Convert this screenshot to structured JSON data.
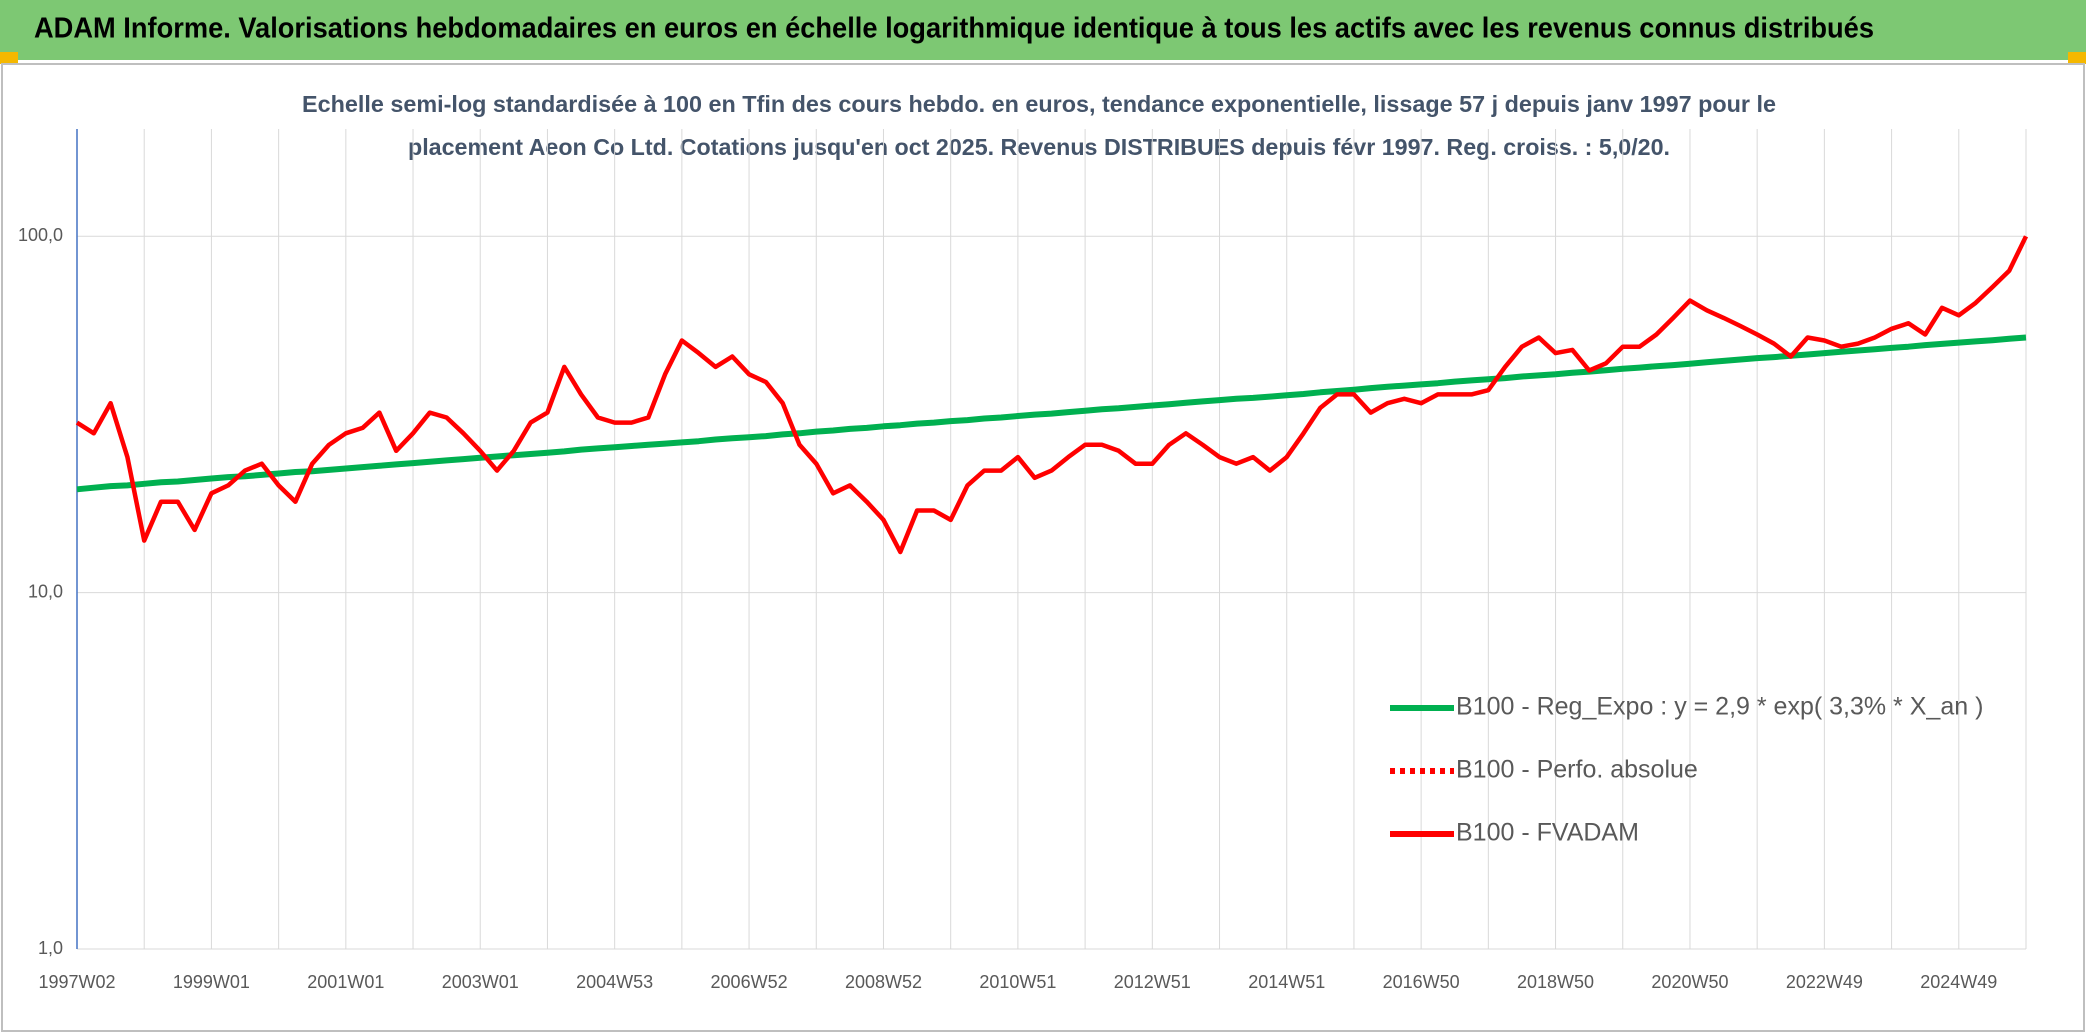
{
  "chart_data": {
    "type": "line",
    "title": "ADAM Informe. Valorisations hebdomadaires en euros en échelle logarithmique identique à tous les actifs avec les revenus connus distribués",
    "subtitle": [
      "Echelle semi-log standardisée à 100 en Tfin des cours hebdo. en euros, tendance exponentielle, lissage 57 j depuis janv 1997 pour le",
      "placement Aeon Co Ltd. Cotations jusqu'en oct 2025. Revenus DISTRIBUES depuis févr 1997. Reg. croiss. : 5,0/20."
    ],
    "categories": [
      "1997W02",
      null,
      null,
      null,
      null,
      null,
      null,
      null,
      "1999W01",
      null,
      null,
      null,
      null,
      null,
      null,
      null,
      "2001W01",
      null,
      null,
      null,
      null,
      null,
      null,
      null,
      "2003W01",
      null,
      null,
      null,
      null,
      null,
      null,
      null,
      "2004W53",
      null,
      null,
      null,
      null,
      null,
      null,
      null,
      "2006W52",
      null,
      null,
      null,
      null,
      null,
      null,
      null,
      "2008W52",
      null,
      null,
      null,
      null,
      null,
      null,
      null,
      "2010W51",
      null,
      null,
      null,
      null,
      null,
      null,
      null,
      "2012W51",
      null,
      null,
      null,
      null,
      null,
      null,
      null,
      "2014W51",
      null,
      null,
      null,
      null,
      null,
      null,
      null,
      "2016W50",
      null,
      null,
      null,
      null,
      null,
      null,
      null,
      "2018W50",
      null,
      null,
      null,
      null,
      null,
      null,
      null,
      "2020W50",
      null,
      null,
      null,
      null,
      null,
      null,
      null,
      "2022W49",
      null,
      null,
      null,
      null,
      null,
      null,
      null,
      "2024W49",
      null,
      null,
      null,
      null
    ],
    "series": [
      {
        "name": "B100 - Reg_Expo : y = 2,9 * exp( 3,3% *  X_an )",
        "color": "#00b050",
        "dash": "solid",
        "values": [
          19.5,
          19.7,
          19.9,
          20.0,
          20.2,
          20.4,
          20.5,
          20.7,
          20.9,
          21.1,
          21.2,
          21.4,
          21.6,
          21.8,
          21.9,
          22.1,
          22.3,
          22.5,
          22.7,
          22.9,
          23.1,
          23.3,
          23.5,
          23.7,
          23.9,
          24.1,
          24.3,
          24.5,
          24.7,
          24.9,
          25.2,
          25.4,
          25.6,
          25.8,
          26.0,
          26.2,
          26.4,
          26.6,
          26.9,
          27.1,
          27.3,
          27.5,
          27.8,
          28.0,
          28.3,
          28.5,
          28.8,
          29.0,
          29.3,
          29.5,
          29.8,
          30.0,
          30.3,
          30.5,
          30.8,
          31.0,
          31.3,
          31.6,
          31.8,
          32.1,
          32.4,
          32.7,
          32.9,
          33.2,
          33.5,
          33.8,
          34.1,
          34.4,
          34.7,
          35.0,
          35.2,
          35.5,
          35.8,
          36.1,
          36.5,
          36.8,
          37.1,
          37.5,
          37.8,
          38.1,
          38.4,
          38.7,
          39.1,
          39.4,
          39.7,
          40.0,
          40.4,
          40.7,
          41.0,
          41.4,
          41.7,
          42.1,
          42.5,
          42.8,
          43.2,
          43.5,
          43.9,
          44.3,
          44.7,
          45.1,
          45.5,
          45.8,
          46.2,
          46.6,
          47.0,
          47.4,
          47.8,
          48.2,
          48.6,
          49.0,
          49.5,
          49.9,
          50.3,
          50.7,
          51.1,
          51.6,
          52.0
        ]
      },
      {
        "name": "B100 - Perfo. absolue",
        "color": "#ff0000",
        "dash": "dotted"
      },
      {
        "name": "B100 - FVADAM",
        "color": "#ff0000",
        "dash": "solid",
        "values": [
          30,
          28,
          34,
          24,
          14,
          18,
          18,
          15,
          19,
          20,
          22,
          23,
          20,
          18,
          23,
          26,
          28,
          29,
          32,
          25,
          28,
          32,
          31,
          28,
          25,
          22,
          25,
          30,
          32,
          43,
          36,
          31,
          30,
          30,
          31,
          41,
          51,
          47,
          43,
          46,
          41,
          39,
          34,
          26,
          23,
          19,
          20,
          18,
          16,
          13,
          17,
          17,
          16,
          20,
          22,
          22,
          24,
          21,
          22,
          24,
          26,
          26,
          25,
          23,
          23,
          26,
          28,
          26,
          24,
          23,
          24,
          22,
          24,
          28,
          33,
          36,
          36,
          32,
          34,
          35,
          34,
          36,
          36,
          36,
          37,
          43,
          49,
          52,
          47,
          48,
          42,
          44,
          49,
          49,
          53,
          59,
          66,
          62,
          59,
          56,
          53,
          50,
          46,
          52,
          51,
          49,
          50,
          52,
          55,
          57,
          53,
          63,
          60,
          65,
          72,
          80,
          100
        ]
      }
    ],
    "ylim": [
      1,
      200
    ],
    "yticks": [
      {
        "value": 1,
        "label": "1,0"
      },
      {
        "value": 10,
        "label": "10,0"
      },
      {
        "value": 100,
        "label": "100,0"
      }
    ],
    "log_y": true,
    "grid": true,
    "legend": "lower right"
  }
}
